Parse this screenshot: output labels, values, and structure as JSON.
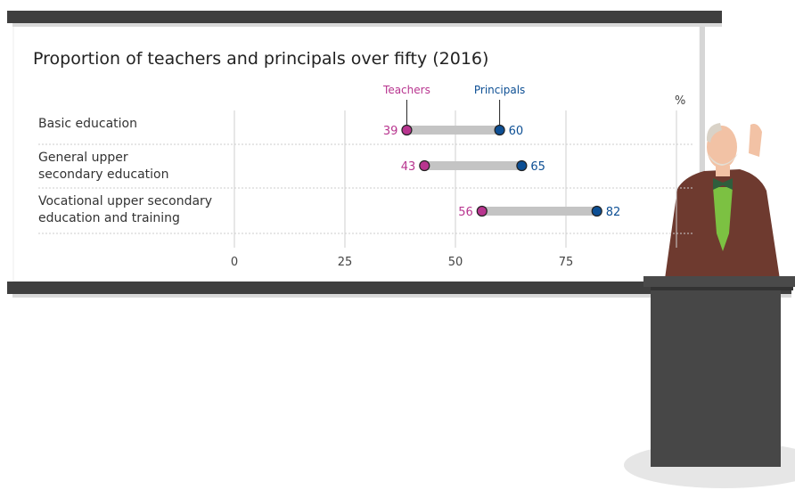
{
  "colors": {
    "teachers": "#b8358f",
    "principals": "#0d4f94",
    "connector": "#c4c4c4",
    "board_bar": "#3f3f3f",
    "podium": "#474747"
  },
  "chart_data": {
    "type": "dumbbell",
    "title": "Proportion of teachers and principals over fifty (2016)",
    "unit": "%",
    "categories": [
      "Basic education",
      "General upper secondary education",
      "Vocational upper secondary education and training"
    ],
    "category_lines": [
      [
        "Basic education"
      ],
      [
        "General upper",
        "secondary education"
      ],
      [
        "Vocational upper secondary",
        "education and training"
      ]
    ],
    "series": [
      {
        "name": "Teachers",
        "values": [
          39,
          43,
          56
        ]
      },
      {
        "name": "Principals",
        "values": [
          60,
          65,
          82
        ]
      }
    ],
    "xticks": [
      0,
      25,
      50,
      75
    ],
    "xlim": [
      0,
      100
    ],
    "grid": true
  }
}
